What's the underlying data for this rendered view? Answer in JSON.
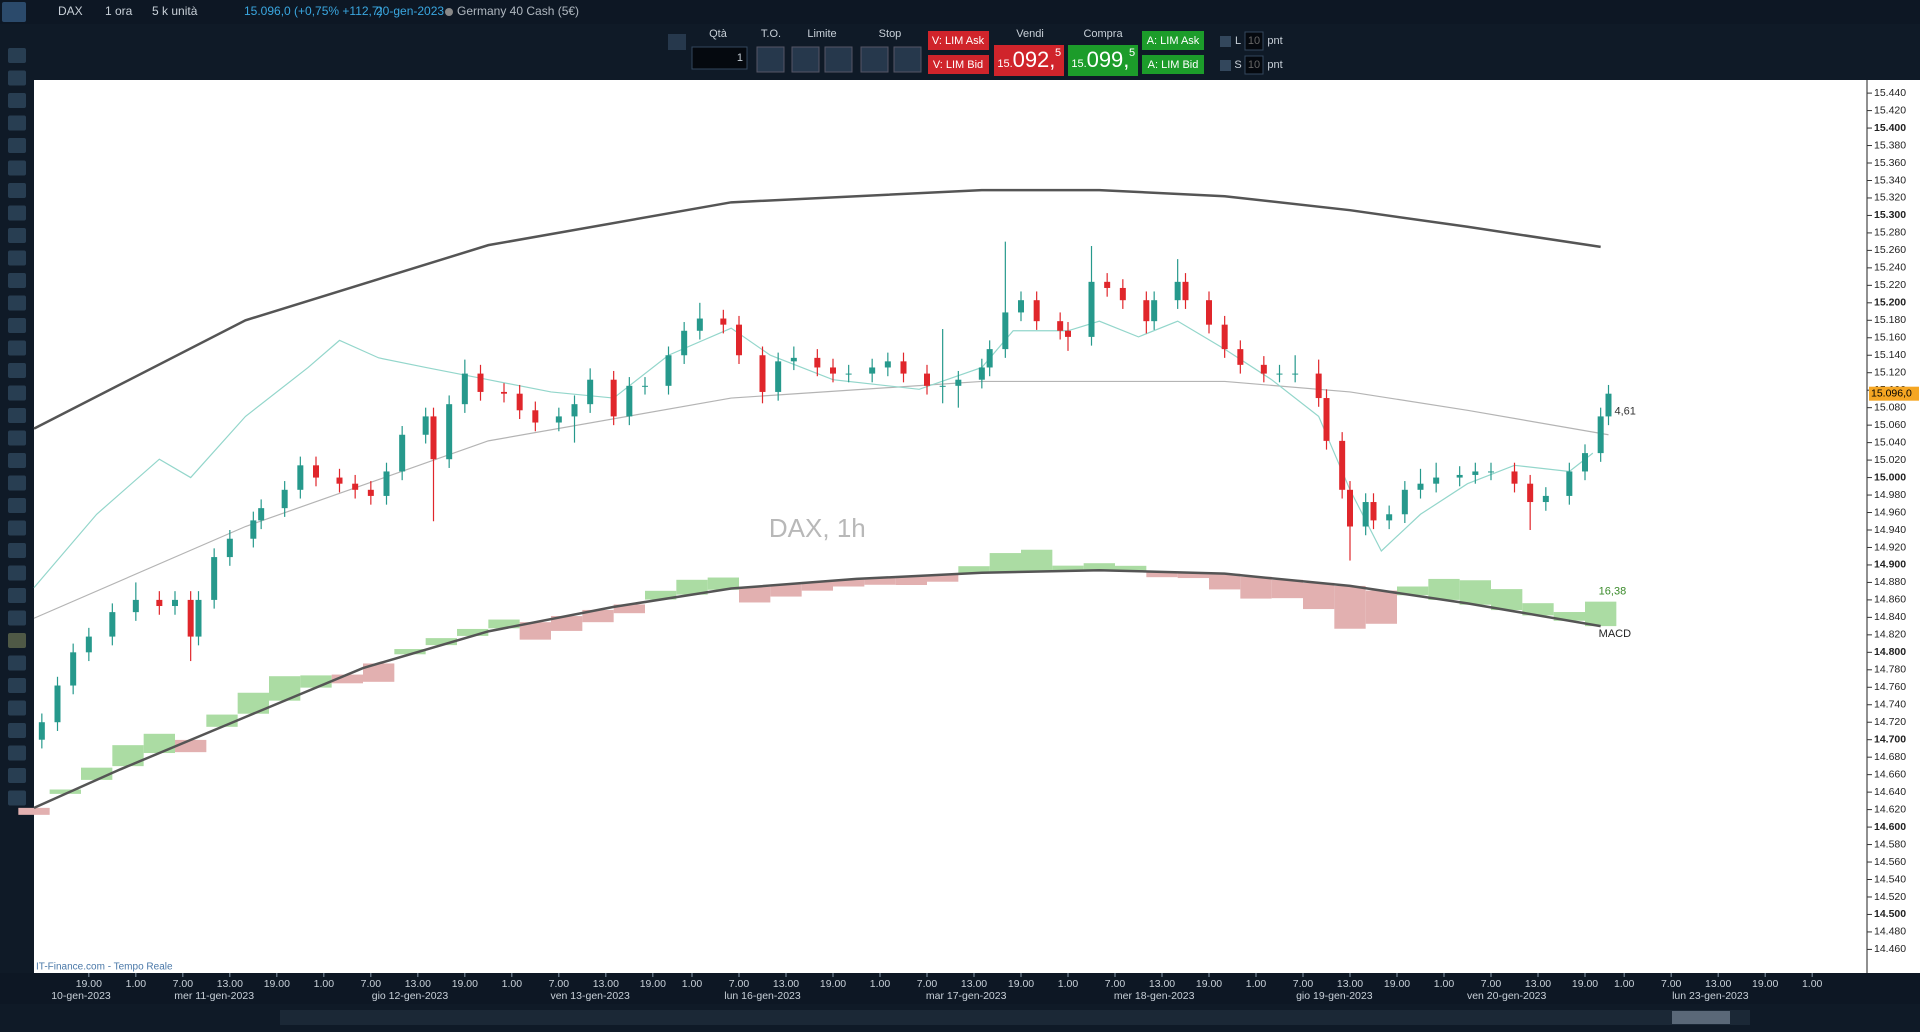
{
  "header": {
    "symbol": "DAX",
    "timeframe": "1 ora",
    "size": "5 k unità",
    "quote": "15.096,0 (+0,75% +112,7)",
    "date": "20-gen-2023",
    "instrument": "Germany 40 Cash (5€)"
  },
  "toolbar": {
    "qty_label": "Qtà",
    "qty": "1",
    "to_label": "T.O.",
    "limit_label": "Limite",
    "stop_label": "Stop",
    "sell_ask": "V: LIM Ask",
    "sell_bid": "V: LIM Bid",
    "sell_label": "Vendi",
    "sell_big": "15.",
    "sell_main": "092,",
    "sell_small": "5",
    "buy_label": "Compra",
    "buy_big": "15.",
    "buy_main": "099,",
    "buy_small": "5",
    "buy_ask": "A: LIM Ask",
    "buy_bid": "A: LIM Bid",
    "l_label": "L",
    "l_value": "10",
    "l_unit": "pnt",
    "s_label": "S",
    "s_value": "10",
    "s_unit": "pnt"
  },
  "footer": {
    "source": "IT-Finance.com - Tempo Reale"
  },
  "chart_data": {
    "type": "candlestick",
    "watermark": "DAX, 1h",
    "up_color": "#26998c",
    "down_color": "#e0262b",
    "last_label": "15.096,0",
    "annotation": "4,61",
    "xlim": [
      0,
      234
    ],
    "ylim": [
      14433,
      15455
    ],
    "xticks": [
      {
        "value": 7,
        "label": "19.00"
      },
      {
        "value": 13,
        "label": "1.00"
      },
      {
        "value": 19,
        "label": "7.00"
      },
      {
        "value": 25,
        "label": "13.00"
      },
      {
        "value": 31,
        "label": "19.00"
      },
      {
        "value": 37,
        "label": "1.00"
      },
      {
        "value": 43,
        "label": "7.00"
      },
      {
        "value": 49,
        "label": "13.00"
      },
      {
        "value": 55,
        "label": "19.00"
      },
      {
        "value": 61,
        "label": "1.00"
      },
      {
        "value": 67,
        "label": "7.00"
      },
      {
        "value": 73,
        "label": "13.00"
      },
      {
        "value": 79,
        "label": "19.00"
      },
      {
        "value": 84,
        "label": "1.00"
      },
      {
        "value": 90,
        "label": "7.00"
      },
      {
        "value": 96,
        "label": "13.00"
      },
      {
        "value": 102,
        "label": "19.00"
      },
      {
        "value": 108,
        "label": "1.00"
      },
      {
        "value": 114,
        "label": "7.00"
      },
      {
        "value": 120,
        "label": "13.00"
      },
      {
        "value": 126,
        "label": "19.00"
      },
      {
        "value": 132,
        "label": "1.00"
      },
      {
        "value": 138,
        "label": "7.00"
      },
      {
        "value": 144,
        "label": "13.00"
      },
      {
        "value": 150,
        "label": "19.00"
      },
      {
        "value": 156,
        "label": "1.00"
      },
      {
        "value": 162,
        "label": "7.00"
      },
      {
        "value": 168,
        "label": "13.00"
      },
      {
        "value": 174,
        "label": "19.00"
      },
      {
        "value": 180,
        "label": "1.00"
      },
      {
        "value": 186,
        "label": "7.00"
      },
      {
        "value": 192,
        "label": "13.00"
      },
      {
        "value": 198,
        "label": "19.00"
      },
      {
        "value": 203,
        "label": "1.00"
      },
      {
        "value": 209,
        "label": "7.00"
      },
      {
        "value": 215,
        "label": "13.00"
      },
      {
        "value": 221,
        "label": "19.00"
      },
      {
        "value": 227,
        "label": "1.00"
      }
    ],
    "date_ticks": [
      {
        "value": 6,
        "label": "10-gen-2023"
      },
      {
        "value": 23,
        "label": "mer 11-gen-2023"
      },
      {
        "value": 48,
        "label": "gio 12-gen-2023"
      },
      {
        "value": 71,
        "label": "ven 13-gen-2023"
      },
      {
        "value": 93,
        "label": "lun 16-gen-2023"
      },
      {
        "value": 119,
        "label": "mar 17-gen-2023"
      },
      {
        "value": 143,
        "label": "mer 18-gen-2023"
      },
      {
        "value": 166,
        "label": "gio 19-gen-2023"
      },
      {
        "value": 188,
        "label": "ven 20-gen-2023"
      },
      {
        "value": 214,
        "label": "lun 23-gen-2023"
      }
    ],
    "yticks": [
      {
        "value": 15440,
        "label": "15.440"
      },
      {
        "value": 15420,
        "label": "15.420"
      },
      {
        "value": 15400,
        "label": "15.400"
      },
      {
        "value": 15380,
        "label": "15.380"
      },
      {
        "value": 15360,
        "label": "15.360"
      },
      {
        "value": 15340,
        "label": "15.340"
      },
      {
        "value": 15320,
        "label": "15.320"
      },
      {
        "value": 15300,
        "label": "15.300"
      },
      {
        "value": 15280,
        "label": "15.280"
      },
      {
        "value": 15260,
        "label": "15.260"
      },
      {
        "value": 15240,
        "label": "15.240"
      },
      {
        "value": 15220,
        "label": "15.220"
      },
      {
        "value": 15200,
        "label": "15.200"
      },
      {
        "value": 15180,
        "label": "15.180"
      },
      {
        "value": 15160,
        "label": "15.160"
      },
      {
        "value": 15140,
        "label": "15.140"
      },
      {
        "value": 15120,
        "label": "15.120"
      },
      {
        "value": 15100,
        "label": "15.100"
      },
      {
        "value": 15080,
        "label": "15.080"
      },
      {
        "value": 15060,
        "label": "15.060"
      },
      {
        "value": 15040,
        "label": "15.040"
      },
      {
        "value": 15020,
        "label": "15.020"
      },
      {
        "value": 15000,
        "label": "15.000"
      },
      {
        "value": 14980,
        "label": "14.980"
      },
      {
        "value": 14960,
        "label": "14.960"
      },
      {
        "value": 14940,
        "label": "14.940"
      },
      {
        "value": 14920,
        "label": "14.920"
      },
      {
        "value": 14900,
        "label": "14.900"
      },
      {
        "value": 14880,
        "label": "14.880"
      },
      {
        "value": 14860,
        "label": "14.860"
      },
      {
        "value": 14840,
        "label": "14.840"
      },
      {
        "value": 14820,
        "label": "14.820"
      },
      {
        "value": 14800,
        "label": "14.800"
      },
      {
        "value": 14780,
        "label": "14.780"
      },
      {
        "value": 14760,
        "label": "14.760"
      },
      {
        "value": 14740,
        "label": "14.740"
      },
      {
        "value": 14720,
        "label": "14.720"
      },
      {
        "value": 14700,
        "label": "14.700"
      },
      {
        "value": 14680,
        "label": "14.680"
      },
      {
        "value": 14660,
        "label": "14.660"
      },
      {
        "value": 14640,
        "label": "14.640"
      },
      {
        "value": 14620,
        "label": "14.620"
      },
      {
        "value": 14600,
        "label": "14.600"
      },
      {
        "value": 14580,
        "label": "14.580"
      },
      {
        "value": 14560,
        "label": "14.560"
      },
      {
        "value": 14540,
        "label": "14.540"
      },
      {
        "value": 14520,
        "label": "14.520"
      },
      {
        "value": 14500,
        "label": "14.500"
      },
      {
        "value": 14480,
        "label": "14.480"
      },
      {
        "value": 14460,
        "label": "14.460"
      }
    ],
    "candles": {
      "x": [
        1,
        3,
        5,
        7,
        10,
        13,
        16,
        18,
        20,
        21,
        23,
        25,
        28,
        29,
        32,
        34,
        36,
        39,
        41,
        43,
        45,
        47,
        50,
        51,
        53,
        55,
        57,
        60,
        62,
        64,
        67,
        69,
        71,
        74,
        76,
        78,
        81,
        83,
        85,
        88,
        90,
        93,
        95,
        97,
        100,
        102,
        104,
        107,
        109,
        111,
        114,
        116,
        118,
        121,
        122,
        124,
        126,
        128,
        131,
        132,
        135,
        137,
        139,
        142,
        143,
        146,
        147,
        150,
        152,
        154,
        157,
        159,
        161,
        164,
        165,
        167,
        168,
        170,
        171,
        173,
        175,
        177,
        179,
        182,
        184,
        186,
        189,
        191,
        193,
        196,
        198,
        200,
        201
      ],
      "open": [
        14700,
        14720,
        14762,
        14800,
        14818,
        14846,
        14860,
        14853,
        14860,
        14818,
        14860,
        14909,
        14930,
        14951,
        14965,
        14986,
        15014,
        15000,
        14993,
        14986,
        14979,
        15007,
        15049,
        15070,
        15021,
        15084,
        15119,
        15098,
        15096,
        15077,
        15063,
        15070,
        15084,
        15112,
        15070,
        15105,
        15105,
        15140,
        15168,
        15182,
        15175,
        15140,
        15098,
        15133,
        15137,
        15126,
        15119,
        15119,
        15126,
        15133,
        15119,
        15105,
        15105,
        15112,
        15126,
        15147,
        15189,
        15203,
        15179,
        15168,
        15161,
        15224,
        15217,
        15203,
        15179,
        15203,
        15224,
        15203,
        15175,
        15147,
        15129,
        15119,
        15119,
        15119,
        15091,
        15042,
        14986,
        14944,
        14972,
        14951,
        14958,
        14986,
        14993,
        15000,
        15003,
        15007,
        15007,
        14993,
        14972,
        14979,
        15007,
        15028,
        15070
      ],
      "high": [
        14730,
        14772,
        14810,
        14828,
        14856,
        14880,
        14870,
        14870,
        14870,
        14870,
        14919,
        14940,
        14961,
        14975,
        14996,
        15024,
        15024,
        15010,
        15003,
        14996,
        15017,
        15059,
        15080,
        15080,
        15094,
        15135,
        15129,
        15108,
        15106,
        15087,
        15080,
        15094,
        15125,
        15122,
        15115,
        15115,
        15150,
        15178,
        15200,
        15192,
        15185,
        15150,
        15143,
        15150,
        15147,
        15136,
        15129,
        15136,
        15143,
        15143,
        15129,
        15170,
        15122,
        15136,
        15157,
        15270,
        15213,
        15213,
        15189,
        15178,
        15265,
        15234,
        15227,
        15213,
        15213,
        15250,
        15234,
        15213,
        15185,
        15157,
        15139,
        15129,
        15140,
        15135,
        15101,
        15052,
        14996,
        14982,
        14982,
        14968,
        14996,
        15010,
        15017,
        15013,
        15017,
        15017,
        15017,
        15003,
        14989,
        15017,
        15038,
        15080,
        15106
      ],
      "low": [
        14690,
        14710,
        14752,
        14790,
        14808,
        14836,
        14843,
        14843,
        14790,
        14808,
        14850,
        14899,
        14920,
        14941,
        14955,
        14976,
        14990,
        14983,
        14976,
        14969,
        14969,
        14997,
        15039,
        14950,
        15011,
        15074,
        15088,
        15086,
        15067,
        15053,
        15053,
        15040,
        15074,
        15060,
        15060,
        15095,
        15095,
        15130,
        15158,
        15165,
        15130,
        15085,
        15088,
        15123,
        15116,
        15109,
        15109,
        15109,
        15116,
        15109,
        15095,
        15085,
        15080,
        15102,
        15116,
        15137,
        15179,
        15169,
        15158,
        15145,
        15151,
        15207,
        15193,
        15165,
        15169,
        15193,
        15193,
        15165,
        15137,
        15119,
        15109,
        15109,
        15109,
        15081,
        15032,
        14976,
        14905,
        14934,
        14941,
        14941,
        14948,
        14976,
        14983,
        14990,
        14993,
        14997,
        14983,
        14940,
        14962,
        14969,
        14997,
        15018,
        15060
      ],
      "close": [
        14720,
        14762,
        14800,
        14818,
        14846,
        14860,
        14853,
        14860,
        14818,
        14860,
        14909,
        14930,
        14951,
        14965,
        14986,
        15014,
        15000,
        14993,
        14986,
        14979,
        15007,
        15049,
        15070,
        15021,
        15084,
        15119,
        15098,
        15096,
        15077,
        15063,
        15070,
        15084,
        15112,
        15070,
        15105,
        15105,
        15140,
        15168,
        15182,
        15175,
        15140,
        15098,
        15133,
        15137,
        15126,
        15119,
        15119,
        15126,
        15133,
        15119,
        15105,
        15105,
        15112,
        15126,
        15147,
        15189,
        15203,
        15179,
        15168,
        15161,
        15224,
        15217,
        15203,
        15179,
        15203,
        15224,
        15203,
        15175,
        15147,
        15129,
        15119,
        15119,
        15119,
        15091,
        15042,
        14986,
        14944,
        14972,
        14951,
        14958,
        14986,
        14993,
        15000,
        15003,
        15007,
        15007,
        14993,
        14972,
        14979,
        15007,
        15028,
        15070,
        15096
      ]
    },
    "lines": [
      {
        "color": "#555555",
        "x": [
          0,
          27,
          58,
          89,
          121,
          136,
          152,
          168,
          183,
          200
        ],
        "values": [
          15056,
          15180,
          15266,
          15315,
          15329,
          15329,
          15322,
          15306,
          15287,
          15264
        ]
      },
      {
        "color": "#b4b4b4",
        "x": [
          0,
          27,
          58,
          89,
          121,
          152,
          168,
          183,
          201
        ],
        "values": [
          14839,
          14944,
          15042,
          15091,
          15110,
          15110,
          15098,
          15077,
          15049
        ]
      },
      {
        "color": "#93d6cb",
        "x": [
          0,
          8,
          16,
          20,
          27,
          35,
          39,
          44,
          50,
          58,
          66,
          74,
          81,
          89,
          94,
          102,
          113,
          121,
          125,
          132,
          136,
          141,
          146,
          152,
          158,
          164,
          168,
          172,
          177,
          183,
          189,
          196,
          199
        ],
        "values": [
          14874,
          14958,
          15021,
          15000,
          15070,
          15126,
          15157,
          15137,
          15126,
          15112,
          15098,
          15091,
          15140,
          15171,
          15140,
          15112,
          15101,
          15126,
          15168,
          15168,
          15179,
          15161,
          15179,
          15147,
          15112,
          15070,
          14986,
          14916,
          14958,
          14993,
          15014,
          15007,
          15028
        ]
      }
    ],
    "macd": {
      "label": "MACD",
      "value_label": "16,38",
      "up_color": "#abdca3",
      "down_color": "#e2b0b0",
      "line_color": "#555555",
      "baseline": {
        "x": [
          0,
          11,
          27,
          42,
          58,
          74,
          89,
          105,
          121,
          136,
          152,
          168,
          183,
          200
        ],
        "values": [
          14622,
          14666,
          14726,
          14782,
          14824,
          14852,
          14873,
          14884,
          14891,
          14894,
          14890,
          14876,
          14856,
          14830
        ]
      },
      "hist": {
        "x": [
          0,
          4,
          8,
          12,
          16,
          20,
          24,
          28,
          32,
          36,
          40,
          44,
          48,
          52,
          56,
          60,
          64,
          68,
          72,
          76,
          80,
          84,
          88,
          92,
          96,
          100,
          104,
          108,
          112,
          116,
          120,
          124,
          128,
          132,
          136,
          140,
          144,
          148,
          152,
          156,
          160,
          164,
          168,
          172,
          176,
          180,
          184,
          188,
          192,
          196,
          200
        ],
        "values": [
          -8,
          5,
          14,
          24,
          22,
          -14,
          14,
          24,
          28,
          14,
          -10,
          -21,
          6,
          8,
          8,
          10,
          -20,
          -17,
          -14,
          -10,
          10,
          17,
          14,
          -18,
          -14,
          -10,
          -8,
          -8,
          -10,
          -8,
          8,
          22,
          25,
          6,
          8,
          6,
          -6,
          -6,
          -18,
          -25,
          -21,
          -30,
          -49,
          -38,
          10,
          24,
          28,
          24,
          14,
          10,
          28
        ]
      }
    }
  }
}
